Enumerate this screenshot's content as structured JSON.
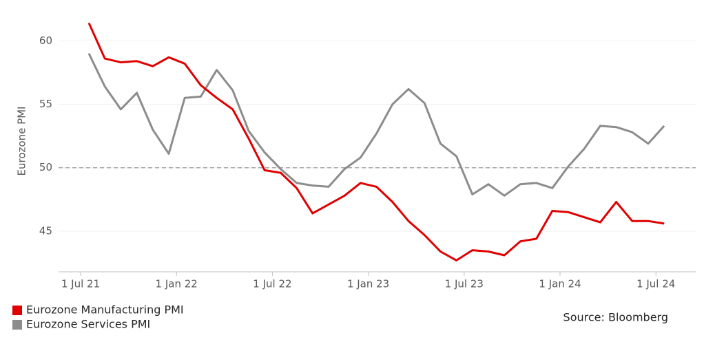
{
  "chart_data": {
    "type": "line",
    "y_label": "Eurozone PMI",
    "source": "Source: Bloomberg",
    "categories": [
      "1 Jul 21",
      null,
      null,
      null,
      null,
      null,
      "1 Jan 22",
      null,
      null,
      null,
      null,
      null,
      "1 Jul 22",
      null,
      null,
      null,
      null,
      null,
      "1 Jan 23",
      null,
      null,
      null,
      null,
      null,
      "1 Jul 23",
      null,
      null,
      null,
      null,
      null,
      "1 Jan 24",
      null,
      null,
      null,
      null,
      null,
      "1 Jul 24"
    ],
    "series": [
      {
        "name": "Eurozone Manufacturing PMI",
        "color": "#e00000",
        "values": [
          61.4,
          58.6,
          58.3,
          58.4,
          58.0,
          58.7,
          58.2,
          56.5,
          55.5,
          54.6,
          52.3,
          49.8,
          49.6,
          48.4,
          46.4,
          47.1,
          47.8,
          48.8,
          48.5,
          47.3,
          45.8,
          44.7,
          43.4,
          42.7,
          43.5,
          43.4,
          43.1,
          44.2,
          44.4,
          46.6,
          46.5,
          46.1,
          45.7,
          47.3,
          45.8,
          45.8,
          45.6
        ]
      },
      {
        "name": "Eurozone Services PMI",
        "color": "#8c8c8c",
        "values": [
          59.0,
          56.4,
          54.6,
          55.9,
          53.0,
          51.1,
          55.5,
          55.6,
          57.7,
          56.1,
          52.9,
          51.2,
          49.9,
          48.8,
          48.6,
          48.5,
          49.9,
          50.8,
          52.7,
          55.0,
          56.2,
          55.1,
          51.9,
          50.9,
          47.9,
          48.7,
          47.8,
          48.7,
          48.8,
          48.4,
          50.1,
          51.5,
          53.3,
          53.2,
          52.8,
          51.9,
          53.3
        ]
      }
    ],
    "reference_line": 50,
    "ylim": [
      41.8,
      62.4
    ],
    "yticks": [
      45,
      50,
      55,
      60
    ],
    "grid": true
  }
}
